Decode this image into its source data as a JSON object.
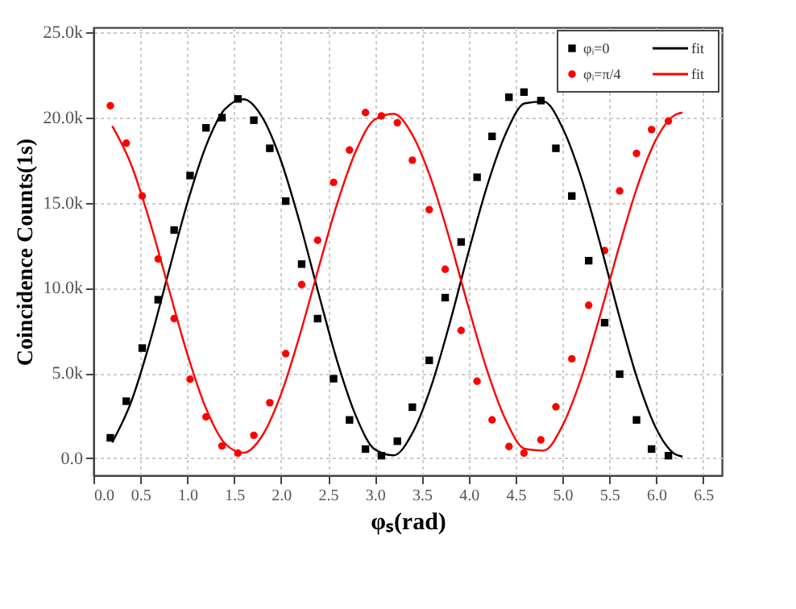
{
  "chart_data": {
    "type": "scatter",
    "xlabel": "φₛ(rad)",
    "ylabel": "Coincidence Counts(1s)",
    "xlim": [
      0,
      6.7
    ],
    "ylim": [
      -1000,
      25300
    ],
    "xticks": [
      {
        "value": 0,
        "label": "0.0"
      },
      {
        "value": 0.5,
        "label": "0.5"
      },
      {
        "value": 1,
        "label": "1.0"
      },
      {
        "value": 1.5,
        "label": "1.5"
      },
      {
        "value": 2,
        "label": "2.0"
      },
      {
        "value": 2.5,
        "label": "2.5"
      },
      {
        "value": 3,
        "label": "3.0"
      },
      {
        "value": 3.5,
        "label": "3.5"
      },
      {
        "value": 4,
        "label": "4.0"
      },
      {
        "value": 4.5,
        "label": "4.5"
      },
      {
        "value": 5,
        "label": "5.0"
      },
      {
        "value": 5.5,
        "label": "5.5"
      },
      {
        "value": 6,
        "label": "6.0"
      },
      {
        "value": 6.5,
        "label": "6.5"
      }
    ],
    "yticks": [
      {
        "value": 0,
        "label": "0.0"
      },
      {
        "value": 5000,
        "label": "5.0k"
      },
      {
        "value": 10000,
        "label": "10.0k"
      },
      {
        "value": 15000,
        "label": "15.0k"
      },
      {
        "value": 20000,
        "label": "20.0k"
      },
      {
        "value": 25000,
        "label": "25.0k"
      }
    ],
    "grid": true,
    "legend": "top right",
    "series": [
      {
        "name": "φᵢ=0",
        "marker": "square",
        "color": "#000000",
        "x": [
          0.18,
          0.35,
          0.52,
          0.69,
          0.86,
          1.03,
          1.2,
          1.37,
          1.54,
          1.71,
          1.88,
          2.05,
          2.22,
          2.39,
          2.56,
          2.73,
          2.9,
          3.07,
          3.24,
          3.4,
          3.58,
          3.75,
          3.92,
          4.09,
          4.25,
          4.43,
          4.59,
          4.77,
          4.93,
          5.1,
          5.28,
          5.45,
          5.61,
          5.79,
          5.95,
          6.13
        ],
        "values": [
          1200,
          3350,
          6470,
          9310,
          13400,
          16600,
          19400,
          20000,
          21100,
          19850,
          18200,
          15100,
          11400,
          8200,
          4670,
          2250,
          540,
          150,
          1000,
          3000,
          5750,
          9430,
          12700,
          16500,
          18900,
          21200,
          21500,
          21000,
          18200,
          15400,
          11600,
          7960,
          4940,
          2250,
          540,
          150
        ]
      },
      {
        "name": "φᵢ=π/4",
        "marker": "circle",
        "color": "#ff0000",
        "x": [
          0.18,
          0.35,
          0.52,
          0.69,
          0.86,
          1.03,
          1.2,
          1.37,
          1.54,
          1.71,
          1.88,
          2.05,
          2.22,
          2.39,
          2.56,
          2.73,
          2.9,
          3.07,
          3.24,
          3.4,
          3.58,
          3.75,
          3.92,
          4.09,
          4.25,
          4.43,
          4.59,
          4.77,
          4.93,
          5.1,
          5.28,
          5.45,
          5.61,
          5.79,
          5.95,
          6.13
        ],
        "values": [
          20700,
          18500,
          15400,
          11700,
          8200,
          4640,
          2430,
          720,
          300,
          1350,
          3260,
          6140,
          10200,
          12800,
          16200,
          18100,
          20300,
          20100,
          19700,
          17500,
          14600,
          11100,
          7500,
          4520,
          2250,
          690,
          300,
          1080,
          3020,
          5840,
          8980,
          12200,
          15700,
          17900,
          19300,
          19800
        ]
      },
      {
        "name": "fit",
        "type": "line",
        "line_style": "solid",
        "color": "#000000",
        "x": [
          0.2,
          0.4,
          0.6,
          0.8,
          1.0,
          1.2,
          1.4,
          1.6,
          1.8,
          2.0,
          2.2,
          2.4,
          2.6,
          2.8,
          3.0,
          3.2,
          3.4,
          3.6,
          3.8,
          4.0,
          4.2,
          4.4,
          4.6,
          4.8,
          5.0,
          5.2,
          5.4,
          5.6,
          5.8,
          6.0,
          6.2,
          6.28
        ],
        "values": [
          930,
          3280,
          6790,
          10910,
          14970,
          18340,
          20490,
          21080,
          20020,
          17460,
          13830,
          9680,
          5680,
          2460,
          520,
          170,
          1470,
          4210,
          7960,
          12130,
          16050,
          19120,
          20840,
          20940,
          19410,
          16490,
          12640,
          8470,
          4630,
          1740,
          240,
          100
        ]
      },
      {
        "name": "fit",
        "type": "line",
        "line_style": "solid",
        "color": "#ff0000",
        "x": [
          0.2,
          0.4,
          0.6,
          0.8,
          1.0,
          1.2,
          1.4,
          1.6,
          1.8,
          2.0,
          2.2,
          2.4,
          2.6,
          2.8,
          3.0,
          3.2,
          3.4,
          3.6,
          3.8,
          4.0,
          4.2,
          4.4,
          4.6,
          4.8,
          5.0,
          5.2,
          5.4,
          5.6,
          5.8,
          6.0,
          6.2,
          6.28
        ],
        "values": [
          19510,
          17270,
          13920,
          10010,
          6140,
          2930,
          880,
          320,
          1330,
          3760,
          7230,
          11170,
          14980,
          18060,
          19900,
          20230,
          18990,
          16380,
          12810,
          8840,
          5110,
          2190,
          550,
          450,
          1910,
          4690,
          8360,
          12330,
          15980,
          18740,
          20160,
          20300
        ]
      }
    ]
  }
}
